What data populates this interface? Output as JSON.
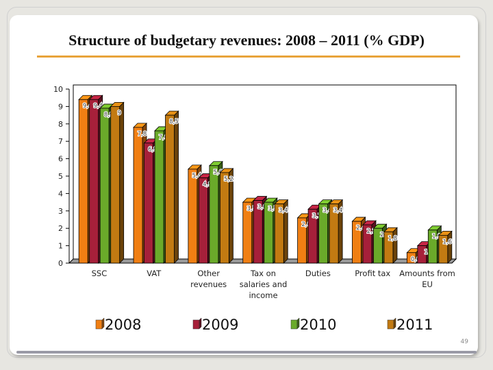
{
  "title": "Structure of budgetary revenues: 2008 – 2011 (% GDP)",
  "page_number": "49",
  "chart_data": {
    "type": "bar",
    "title": "",
    "xlabel": "",
    "ylabel": "",
    "ylim": [
      0,
      10
    ],
    "yticks": [
      "0",
      "1",
      "2",
      "3",
      "4",
      "5",
      "6",
      "7",
      "8",
      "9",
      "10"
    ],
    "grid": false,
    "legend_position": "bottom",
    "categories": [
      [
        "SSC"
      ],
      [
        "VAT"
      ],
      [
        "Other",
        "revenues"
      ],
      [
        "Tax on",
        "salaries and",
        "income"
      ],
      [
        "Duties"
      ],
      [
        "Profit tax"
      ],
      [
        "Amounts from",
        "EU"
      ]
    ],
    "series": [
      {
        "name": "2008",
        "color": "#f07f13",
        "values": [
          9.4,
          7.8,
          5.4,
          3.5,
          2.6,
          2.4,
          0.6
        ],
        "labels": [
          "9,4",
          "7,8",
          "5,4",
          "3,5",
          "2,6",
          "2,4",
          "0,6"
        ]
      },
      {
        "name": "2009",
        "color": "#a6203a",
        "values": [
          9.4,
          6.9,
          4.9,
          3.6,
          3.1,
          2.2,
          1.0
        ],
        "labels": [
          "9,4",
          "6,9",
          "4,9",
          "3,6",
          "3,1",
          "2,2",
          "1"
        ]
      },
      {
        "name": "2010",
        "color": "#6aaa2a",
        "values": [
          8.9,
          7.6,
          5.6,
          3.5,
          3.4,
          2.0,
          1.9
        ],
        "labels": [
          "8,9",
          "7,6",
          "5,6",
          "3,5",
          "3,4",
          "2",
          "1,9"
        ]
      },
      {
        "name": "2011",
        "color": "#c27a12",
        "values": [
          9.0,
          8.5,
          5.2,
          3.4,
          3.4,
          1.8,
          1.6
        ],
        "labels": [
          "9",
          "8,5",
          "5,2",
          "3,4",
          "3,4",
          "1,8",
          "1,6"
        ]
      }
    ]
  }
}
